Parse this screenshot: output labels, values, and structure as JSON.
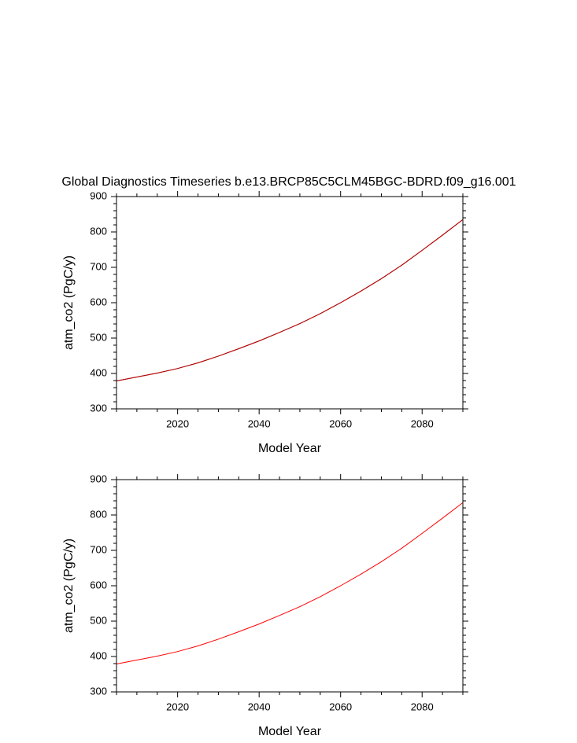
{
  "chart_data": [
    {
      "type": "line",
      "title": "Global Diagnostics Timeseries b.e13.BRCP85C5CLM45BGC-BDRD.f09_g16.001",
      "xlabel": "Model Year",
      "ylabel": "atm_co2 (PgC/y)",
      "x": [
        2005,
        2010,
        2015,
        2020,
        2025,
        2030,
        2035,
        2040,
        2045,
        2050,
        2055,
        2060,
        2065,
        2070,
        2075,
        2080,
        2085,
        2090
      ],
      "series": [
        {
          "color": "#000000",
          "values": [
            379,
            390,
            401,
            414,
            430,
            449,
            470,
            492,
            516,
            541,
            569,
            600,
            633,
            668,
            706,
            748,
            791,
            835
          ]
        },
        {
          "color": "#cc0000",
          "values": [
            379,
            390,
            401,
            414,
            430,
            449,
            470,
            492,
            516,
            541,
            569,
            600,
            633,
            668,
            706,
            748,
            791,
            835
          ]
        }
      ],
      "xlim": [
        2005,
        2090
      ],
      "xticks": [
        2020,
        2040,
        2060,
        2080
      ],
      "xminorticks": [
        2005,
        2010,
        2015,
        2025,
        2030,
        2035,
        2045,
        2050,
        2055,
        2065,
        2070,
        2075,
        2085,
        2090
      ],
      "ylim": [
        300,
        900
      ],
      "yticks": [
        300,
        400,
        500,
        600,
        700,
        800,
        900
      ],
      "yminorticks": [
        320,
        340,
        360,
        380,
        420,
        440,
        460,
        480,
        520,
        540,
        560,
        580,
        620,
        640,
        660,
        680,
        720,
        740,
        760,
        780,
        820,
        840,
        860,
        880
      ],
      "grid": false
    },
    {
      "type": "line",
      "xlabel": "Model Year",
      "ylabel": "atm_co2 (PgC/y)",
      "x": [
        2005,
        2010,
        2015,
        2020,
        2025,
        2030,
        2035,
        2040,
        2045,
        2050,
        2055,
        2060,
        2065,
        2070,
        2075,
        2080,
        2085,
        2090
      ],
      "series": [
        {
          "color": "#ff0000",
          "values": [
            379,
            390,
            401,
            414,
            430,
            449,
            470,
            492,
            516,
            541,
            569,
            600,
            633,
            668,
            706,
            748,
            791,
            835
          ]
        }
      ],
      "xlim": [
        2005,
        2090
      ],
      "xticks": [
        2020,
        2040,
        2060,
        2080
      ],
      "xminorticks": [
        2005,
        2010,
        2015,
        2025,
        2030,
        2035,
        2045,
        2050,
        2055,
        2065,
        2070,
        2075,
        2085,
        2090
      ],
      "ylim": [
        300,
        900
      ],
      "yticks": [
        300,
        400,
        500,
        600,
        700,
        800,
        900
      ],
      "yminorticks": [
        320,
        340,
        360,
        380,
        420,
        440,
        460,
        480,
        520,
        540,
        560,
        580,
        620,
        640,
        660,
        680,
        720,
        740,
        760,
        780,
        820,
        840,
        860,
        880
      ],
      "grid": false
    }
  ]
}
